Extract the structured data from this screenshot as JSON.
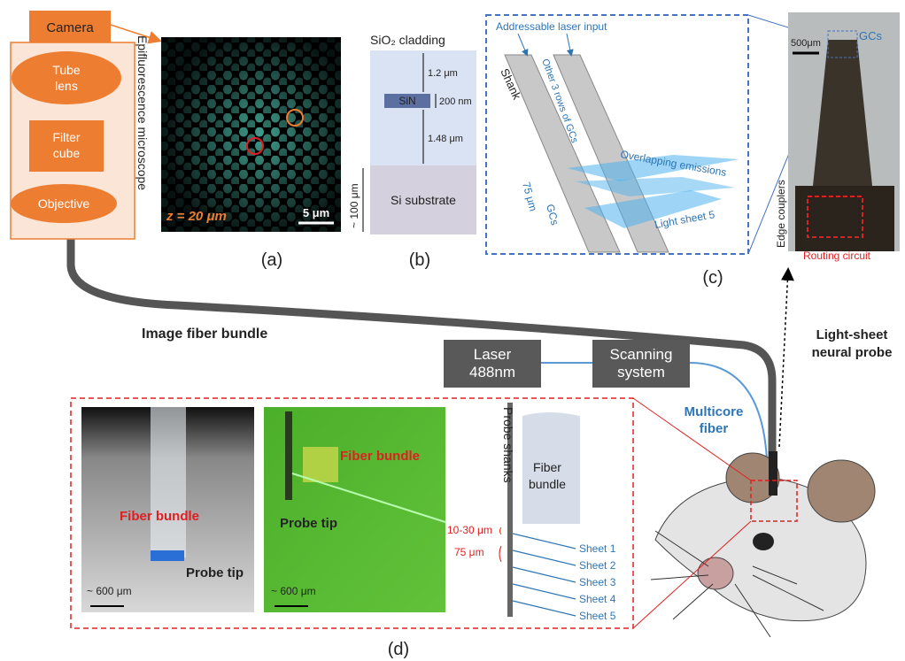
{
  "microscope": {
    "camera": "Camera",
    "tube_lens": [
      "Tube",
      "lens"
    ],
    "filter_cube": [
      "Filter",
      "cube"
    ],
    "objective": "Objective",
    "label": "Epifluorescence microscope"
  },
  "panel_a": {
    "depth": "z = 20 μm",
    "scale_bar": "5 μm",
    "caption": "(a)"
  },
  "panel_b": {
    "cladding": "SiO₂ cladding",
    "top_thickness": "1.2 μm",
    "core": "SiN",
    "core_thickness": "200 nm",
    "bottom_thickness": "1.48 μm",
    "substrate_thickness": "~ 100 μm",
    "substrate": "Si substrate",
    "caption": "(b)"
  },
  "panel_c": {
    "laser_input": "Addressable laser input",
    "shank": "Shank",
    "other_rows": "Other 3 rows of GCs",
    "overlap": "Overlapping emissions",
    "pitch": "75 μm",
    "gcs": "GCs",
    "light_sheet": "Light sheet 5",
    "photo_scale": "500μm",
    "photo_gcs": "GCs",
    "edge_couplers": "Edge couplers",
    "routing": "Routing circuit",
    "caption": "(c)"
  },
  "system": {
    "image_fiber": "Image fiber bundle",
    "probe": [
      "Light-sheet",
      "neural probe"
    ],
    "laser": [
      "Laser",
      "488nm"
    ],
    "scanning": [
      "Scanning",
      "system"
    ],
    "multicore": [
      "Multicore",
      "fiber"
    ]
  },
  "panel_d": {
    "photo1_bundle": "Fiber bundle",
    "photo1_tip": "Probe tip",
    "photo1_scale": "~ 600 μm",
    "photo2_bundle": "Fiber bundle",
    "photo2_tip": "Probe tip",
    "photo2_scale": "~ 600 μm",
    "shanks": "Probe shanks",
    "bundle": [
      "Fiber",
      "bundle"
    ],
    "gap": "10-30 μm",
    "pitch": "75 μm",
    "sheets": [
      "Sheet 1",
      "Sheet 2",
      "Sheet 3",
      "Sheet 4",
      "Sheet 5"
    ],
    "caption": "(d)"
  }
}
